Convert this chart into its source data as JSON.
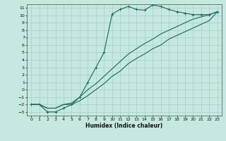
{
  "xlabel": "Humidex (Indice chaleur)",
  "bg_color": "#c5e8e0",
  "grid_color": "#a8cfc8",
  "line_color": "#1a6b5a",
  "xlim": [
    -0.5,
    23.5
  ],
  "ylim": [
    -3.5,
    11.5
  ],
  "xticks": [
    0,
    1,
    2,
    3,
    4,
    5,
    6,
    7,
    8,
    9,
    10,
    11,
    12,
    13,
    14,
    15,
    16,
    17,
    18,
    19,
    20,
    21,
    22,
    23
  ],
  "yticks": [
    -3,
    -2,
    -1,
    0,
    1,
    2,
    3,
    4,
    5,
    6,
    7,
    8,
    9,
    10,
    11
  ],
  "line1_x": [
    0,
    1,
    2,
    3,
    4,
    5,
    6,
    7,
    8,
    9,
    10,
    11,
    12,
    13,
    14,
    15,
    16,
    17,
    18,
    19,
    20,
    21,
    22,
    23
  ],
  "line1_y": [
    -2,
    -2,
    -3,
    -3,
    -2.5,
    -2,
    -1,
    1,
    3,
    5,
    10.2,
    10.8,
    11.2,
    10.8,
    10.7,
    11.4,
    11.2,
    10.8,
    10.5,
    10.3,
    10.1,
    10.1,
    10.1,
    10.5
  ],
  "line2_x": [
    0,
    1,
    2,
    3,
    4,
    5,
    6,
    7,
    8,
    9,
    10,
    11,
    12,
    13,
    14,
    15,
    16,
    17,
    18,
    19,
    20,
    21,
    22,
    23
  ],
  "line2_y": [
    -2,
    -2,
    -2.5,
    -2.5,
    -2,
    -1.8,
    -1,
    0,
    0.8,
    1.8,
    2.8,
    3.8,
    4.8,
    5.5,
    6.2,
    6.8,
    7.5,
    8.0,
    8.5,
    9.0,
    9.5,
    9.8,
    10.1,
    10.5
  ],
  "line3_x": [
    0,
    1,
    2,
    3,
    4,
    5,
    6,
    7,
    8,
    9,
    10,
    11,
    12,
    13,
    14,
    15,
    16,
    17,
    18,
    19,
    20,
    21,
    22,
    23
  ],
  "line3_y": [
    -2,
    -2,
    -2.5,
    -2.5,
    -2,
    -2,
    -1.5,
    -0.8,
    0,
    0.8,
    1.8,
    2.5,
    3.5,
    4.2,
    4.8,
    5.5,
    6.0,
    6.8,
    7.3,
    7.8,
    8.3,
    8.8,
    9.3,
    10.5
  ]
}
